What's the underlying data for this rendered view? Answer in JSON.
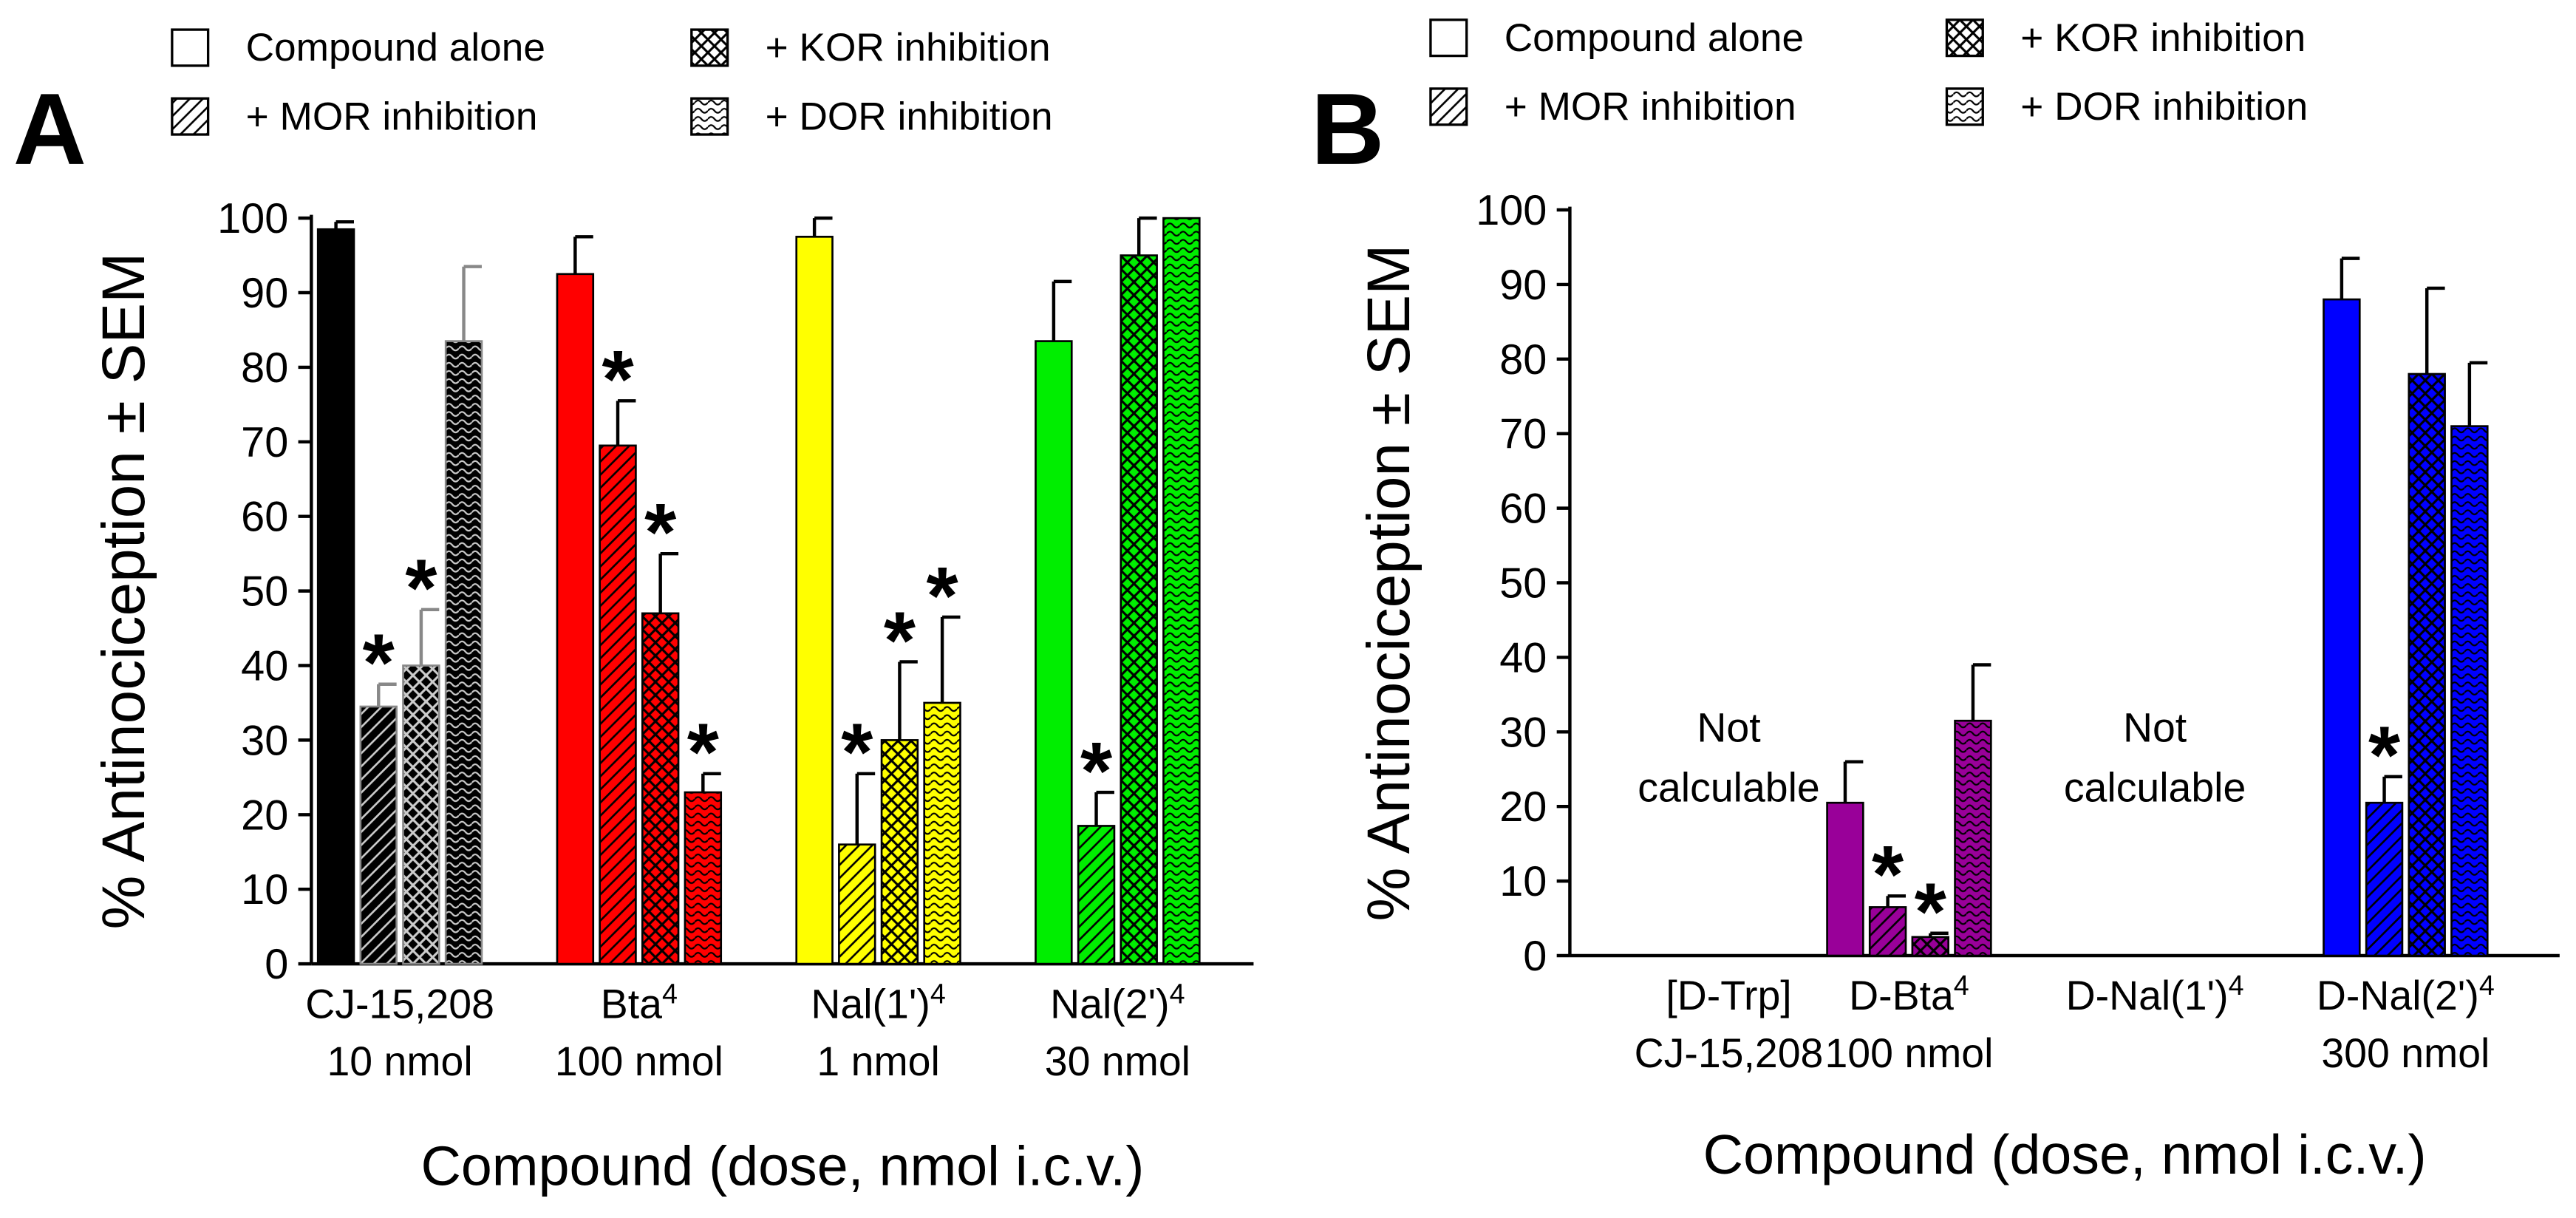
{
  "chart_data": [
    {
      "type": "bar",
      "panel_label": "A",
      "ylabel": "% Antinociception ± SEM",
      "xlabel": "Compound (dose, nmol i.c.v.)",
      "ylim": [
        0,
        100
      ],
      "yticks": [
        0,
        10,
        20,
        30,
        40,
        50,
        60,
        70,
        80,
        90,
        100
      ],
      "legend": {
        "position": "top",
        "entries": [
          "Compound alone",
          "+ MOR inhibition",
          "+ KOR inhibition",
          "+ DOR inhibition"
        ]
      },
      "series_names": [
        "Compound alone",
        "+ MOR inhibition",
        "+ KOR inhibition",
        "+ DOR inhibition"
      ],
      "groups": [
        {
          "name": "CJ-15,208",
          "sup": "",
          "dose": "10 nmol",
          "color": "#000000",
          "values": [
            98.5,
            34.5,
            40,
            83.5
          ],
          "errors": [
            1,
            3,
            7.5,
            10
          ],
          "significant": [
            false,
            true,
            true,
            false
          ]
        },
        {
          "name": "Bta",
          "sup": "4",
          "dose": "100 nmol",
          "color": "#ff0000",
          "values": [
            92.5,
            69.5,
            47,
            23
          ],
          "errors": [
            5,
            6,
            8,
            2.5
          ],
          "significant": [
            false,
            true,
            true,
            true
          ]
        },
        {
          "name": "Nal(1')",
          "sup": "4",
          "dose": "1 nmol",
          "color": "#ffff00",
          "values": [
            97.5,
            16,
            30,
            35
          ],
          "errors": [
            2.5,
            9.5,
            10.5,
            11.5
          ],
          "significant": [
            false,
            true,
            true,
            true
          ]
        },
        {
          "name": "Nal(2')",
          "sup": "4",
          "dose": "30 nmol",
          "color": "#00ee00",
          "values": [
            83.5,
            18.5,
            95,
            100
          ],
          "errors": [
            8,
            4.5,
            5,
            0
          ],
          "significant": [
            false,
            true,
            false,
            false
          ]
        }
      ]
    },
    {
      "type": "bar",
      "panel_label": "B",
      "ylabel": "% Antinociception ± SEM",
      "xlabel": "Compound (dose, nmol i.c.v.)",
      "ylim": [
        0,
        100
      ],
      "yticks": [
        0,
        10,
        20,
        30,
        40,
        50,
        60,
        70,
        80,
        90,
        100
      ],
      "legend": {
        "position": "top",
        "entries": [
          "Compound alone",
          "+ MOR inhibition",
          "+ KOR inhibition",
          "+ DOR inhibition"
        ]
      },
      "series_names": [
        "Compound alone",
        "+ MOR inhibition",
        "+ KOR inhibition",
        "+ DOR inhibition"
      ],
      "groups": [
        {
          "name": "[D-Trp]",
          "sup": "",
          "dose": "CJ-15,208",
          "color": "#000000",
          "values": [],
          "errors": [],
          "significant": [],
          "note_line1": "Not",
          "note_line2": "calculable"
        },
        {
          "name": "D-Bta",
          "sup": "4",
          "dose": "100 nmol",
          "color": "#990099",
          "values": [
            20.5,
            6.5,
            2.5,
            31.5
          ],
          "errors": [
            5.5,
            1.5,
            0.5,
            7.5
          ],
          "significant": [
            false,
            true,
            true,
            false
          ]
        },
        {
          "name": "D-Nal(1')",
          "sup": "4",
          "dose": "",
          "color": "#000000",
          "values": [],
          "errors": [],
          "significant": [],
          "note_line1": "Not",
          "note_line2": "calculable"
        },
        {
          "name": "D-Nal(2')",
          "sup": "4",
          "dose": "300 nmol",
          "color": "#0000ff",
          "values": [
            88,
            20.5,
            78,
            71
          ],
          "errors": [
            5.5,
            3.5,
            11.5,
            8.5
          ],
          "significant": [
            false,
            true,
            false,
            false
          ]
        }
      ]
    }
  ],
  "significance_marker": "*"
}
